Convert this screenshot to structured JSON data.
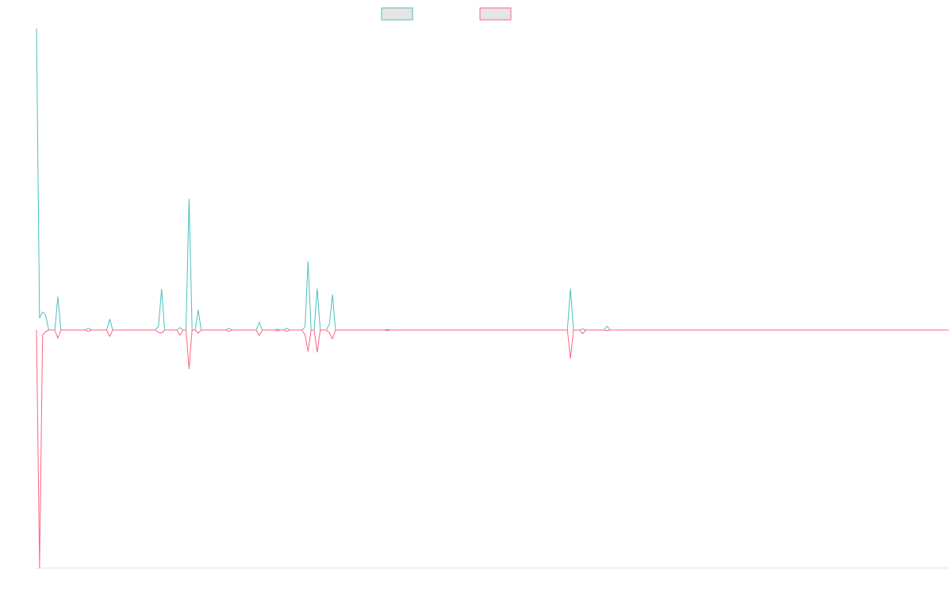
{
  "chart_data": {
    "type": "line",
    "title": "",
    "xlabel": "",
    "ylabel": "",
    "grid": false,
    "legend_position": "top-center",
    "x_count": 300,
    "ylim": [
      -1,
      1
    ],
    "series": [
      {
        "color": "#4bc0c0",
        "fill": "#e5e5e5",
        "points": [
          [
            0,
            1.0
          ],
          [
            1,
            0.04
          ],
          [
            2,
            0.06
          ],
          [
            3,
            0.05
          ],
          [
            4,
            0.0
          ],
          [
            5,
            0.0
          ],
          [
            6,
            0.0
          ],
          [
            7,
            0.11
          ],
          [
            8,
            0.0
          ],
          [
            16,
            0.0
          ],
          [
            17,
            0.006
          ],
          [
            18,
            0.0
          ],
          [
            23,
            0.0
          ],
          [
            24,
            0.036
          ],
          [
            25,
            0.0
          ],
          [
            39,
            0.0
          ],
          [
            40,
            0.013
          ],
          [
            41,
            0.136
          ],
          [
            42,
            0.0
          ],
          [
            46,
            0.0
          ],
          [
            47,
            0.008
          ],
          [
            48,
            0.0
          ],
          [
            49,
            0.0
          ],
          [
            50,
            0.435
          ],
          [
            51,
            0.0
          ],
          [
            52,
            0.0
          ],
          [
            53,
            0.066
          ],
          [
            54,
            0.0
          ],
          [
            62,
            0.0
          ],
          [
            63,
            0.006
          ],
          [
            64,
            0.0
          ],
          [
            72,
            0.0
          ],
          [
            73,
            0.026
          ],
          [
            74,
            0.0
          ],
          [
            78,
            0.0
          ],
          [
            79,
            0.003
          ],
          [
            80,
            0.0
          ],
          [
            81,
            0.0
          ],
          [
            82,
            0.006
          ],
          [
            83,
            0.0
          ],
          [
            87,
            0.0
          ],
          [
            88,
            0.01
          ],
          [
            89,
            0.227
          ],
          [
            90,
            0.0
          ],
          [
            91,
            0.0
          ],
          [
            92,
            0.137
          ],
          [
            93,
            0.0
          ],
          [
            95,
            0.0
          ],
          [
            96,
            0.02
          ],
          [
            97,
            0.117
          ],
          [
            98,
            0.0
          ],
          [
            114,
            0.0
          ],
          [
            115,
            0.002
          ],
          [
            116,
            0.0
          ],
          [
            174,
            0.0
          ],
          [
            175,
            0.137
          ],
          [
            176,
            0.0
          ],
          [
            178,
            0.0
          ],
          [
            179,
            0.004
          ],
          [
            180,
            0.0
          ],
          [
            186,
            0.0
          ],
          [
            187,
            0.013
          ],
          [
            188,
            0.0
          ],
          [
            299,
            0.0
          ]
        ]
      },
      {
        "color": "#ff6384",
        "fill": "#e5e5e5",
        "points": [
          [
            0,
            0.0
          ],
          [
            1,
            -1.0
          ],
          [
            2,
            -0.02
          ],
          [
            3,
            -0.007
          ],
          [
            4,
            0.0
          ],
          [
            5,
            0.0
          ],
          [
            6,
            0.0
          ],
          [
            7,
            -0.035
          ],
          [
            8,
            0.0
          ],
          [
            16,
            0.0
          ],
          [
            17,
            -0.006
          ],
          [
            18,
            0.0
          ],
          [
            23,
            0.0
          ],
          [
            24,
            -0.027
          ],
          [
            25,
            0.0
          ],
          [
            39,
            0.0
          ],
          [
            40,
            -0.01
          ],
          [
            41,
            -0.013
          ],
          [
            42,
            0.0
          ],
          [
            46,
            0.0
          ],
          [
            47,
            -0.022
          ],
          [
            48,
            0.0
          ],
          [
            49,
            0.0
          ],
          [
            50,
            -0.163
          ],
          [
            51,
            0.0
          ],
          [
            52,
            0.0
          ],
          [
            53,
            -0.013
          ],
          [
            54,
            0.0
          ],
          [
            62,
            0.0
          ],
          [
            63,
            -0.006
          ],
          [
            64,
            0.0
          ],
          [
            72,
            0.0
          ],
          [
            73,
            -0.023
          ],
          [
            74,
            0.0
          ],
          [
            78,
            0.0
          ],
          [
            79,
            -0.003
          ],
          [
            80,
            0.0
          ],
          [
            81,
            0.0
          ],
          [
            82,
            -0.006
          ],
          [
            83,
            0.0
          ],
          [
            87,
            0.0
          ],
          [
            88,
            -0.02
          ],
          [
            89,
            -0.09
          ],
          [
            90,
            0.0
          ],
          [
            91,
            0.0
          ],
          [
            92,
            -0.093
          ],
          [
            93,
            0.0
          ],
          [
            95,
            0.0
          ],
          [
            96,
            -0.012
          ],
          [
            97,
            -0.037
          ],
          [
            98,
            0.0
          ],
          [
            114,
            0.0
          ],
          [
            115,
            -0.002
          ],
          [
            116,
            0.0
          ],
          [
            174,
            0.0
          ],
          [
            175,
            -0.12
          ],
          [
            176,
            0.0
          ],
          [
            178,
            0.0
          ],
          [
            179,
            -0.015
          ],
          [
            180,
            0.0
          ],
          [
            186,
            0.0
          ],
          [
            187,
            -0.003
          ],
          [
            188,
            0.0
          ],
          [
            299,
            0.0
          ]
        ]
      }
    ]
  }
}
